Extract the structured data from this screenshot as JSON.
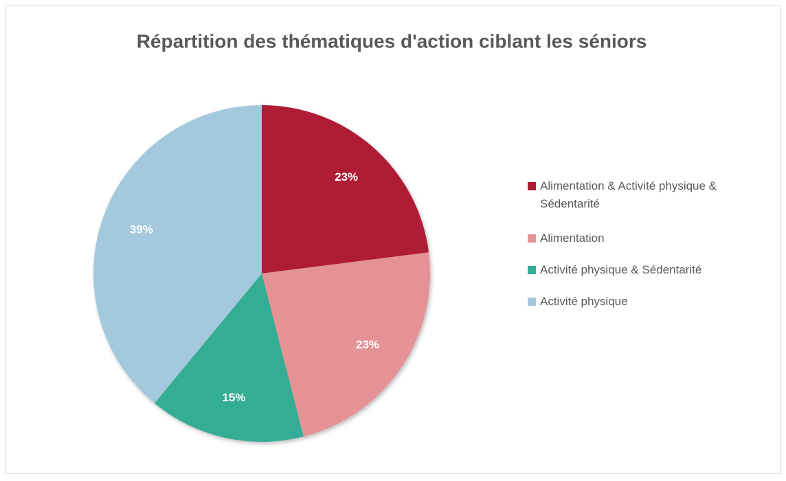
{
  "chart_data": {
    "type": "pie",
    "title": "Répartition des thématiques d'action ciblant les séniors",
    "categories": [
      "Alimentation & Activité physique & Sédentarité",
      "Alimentation",
      "Activité physique & Sédentarité",
      "Activité physique"
    ],
    "values": [
      23,
      23,
      15,
      39
    ],
    "value_labels": [
      "23%",
      "23%",
      "15%",
      "39%"
    ],
    "colors": [
      "#ae1c35",
      "#e59297",
      "#35ad94",
      "#a4c9dc"
    ],
    "legend": "right"
  }
}
